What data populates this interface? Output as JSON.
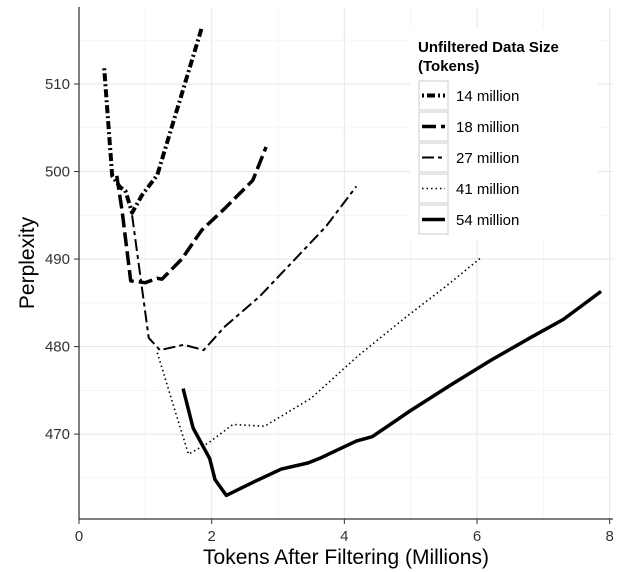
{
  "chart_data": {
    "type": "line",
    "xlabel": "Tokens After Filtering (Millions)",
    "ylabel": "Perplexity",
    "xlim": [
      0,
      8.05
    ],
    "ylim": [
      460.3,
      518.8
    ],
    "xticks": [
      0,
      2,
      4,
      6,
      8
    ],
    "yticks": [
      470,
      480,
      490,
      500,
      510
    ],
    "grid": true,
    "legend": {
      "title_lines": [
        "Unfiltered Data Size",
        "(Tokens)"
      ],
      "position": "top-right"
    },
    "series": [
      {
        "name": "14 million",
        "dash": "dot-dash",
        "stroke_width": 4,
        "points": [
          [
            0.38,
            511.8
          ],
          [
            0.5,
            499.5
          ],
          [
            0.62,
            498.2
          ],
          [
            0.7,
            497.8
          ],
          [
            0.8,
            495.3
          ],
          [
            0.95,
            497.3
          ],
          [
            1.18,
            499.6
          ],
          [
            1.85,
            516.4
          ]
        ]
      },
      {
        "name": "18 million",
        "dash": "long-dash",
        "stroke_width": 3.5,
        "points": [
          [
            0.57,
            499.5
          ],
          [
            0.65,
            495.5
          ],
          [
            0.78,
            487.5
          ],
          [
            1.0,
            487.3
          ],
          [
            1.18,
            487.8
          ],
          [
            1.25,
            487.7
          ],
          [
            1.55,
            490.0
          ],
          [
            1.85,
            493.3
          ],
          [
            2.2,
            495.8
          ],
          [
            2.62,
            499.0
          ],
          [
            2.82,
            502.8
          ]
        ]
      },
      {
        "name": "27 million",
        "dash": "long-dash-short-dash",
        "stroke_width": 2,
        "points": [
          [
            0.8,
            495.0
          ],
          [
            1.05,
            481.0
          ],
          [
            1.22,
            479.6
          ],
          [
            1.58,
            480.2
          ],
          [
            1.78,
            479.8
          ],
          [
            1.88,
            479.6
          ],
          [
            2.2,
            482.3
          ],
          [
            2.72,
            485.7
          ],
          [
            3.22,
            489.7
          ],
          [
            3.72,
            493.7
          ],
          [
            4.18,
            498.3
          ]
        ]
      },
      {
        "name": "41 million",
        "dash": "dotted",
        "stroke_width": 1.6,
        "points": [
          [
            1.18,
            479.3
          ],
          [
            1.45,
            472.6
          ],
          [
            1.65,
            467.7
          ],
          [
            1.95,
            469.0
          ],
          [
            2.32,
            471.1
          ],
          [
            2.8,
            470.9
          ],
          [
            3.5,
            474.1
          ],
          [
            4.2,
            478.9
          ],
          [
            4.9,
            483.2
          ],
          [
            5.55,
            487.0
          ],
          [
            6.05,
            490.1
          ]
        ]
      },
      {
        "name": "54 million",
        "dash": "solid",
        "stroke_width": 3.5,
        "points": [
          [
            1.57,
            475.2
          ],
          [
            1.72,
            470.7
          ],
          [
            1.97,
            467.2
          ],
          [
            2.05,
            464.8
          ],
          [
            2.22,
            463.0
          ],
          [
            2.65,
            464.6
          ],
          [
            3.05,
            466.0
          ],
          [
            3.45,
            466.7
          ],
          [
            3.65,
            467.3
          ],
          [
            4.18,
            469.2
          ],
          [
            4.42,
            469.7
          ],
          [
            5.0,
            472.7
          ],
          [
            5.6,
            475.6
          ],
          [
            6.2,
            478.4
          ],
          [
            6.8,
            481.0
          ],
          [
            7.3,
            483.1
          ],
          [
            7.87,
            486.3
          ]
        ]
      }
    ]
  }
}
